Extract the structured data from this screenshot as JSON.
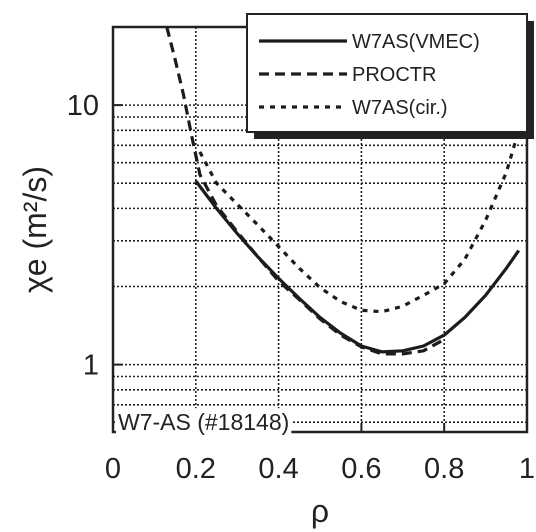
{
  "chart_data": {
    "type": "line",
    "title": "",
    "xlabel": "ρ",
    "ylabel": "χe (m²/s)",
    "xlim": [
      0,
      1
    ],
    "ylim": [
      0.55,
      20
    ],
    "yscale": "log",
    "grid": true,
    "x_ticks": [
      {
        "value": 0,
        "label": "0"
      },
      {
        "value": 0.2,
        "label": "0.2"
      },
      {
        "value": 0.4,
        "label": "0.4"
      },
      {
        "value": 0.6,
        "label": "0.6"
      },
      {
        "value": 0.8,
        "label": "0.8"
      },
      {
        "value": 1,
        "label": "1"
      }
    ],
    "y_ticks": [
      {
        "value": 1,
        "label": "1"
      },
      {
        "value": 10,
        "label": "10"
      }
    ],
    "legend_position": "top-right",
    "annotation": "W7-AS (#18148)",
    "series": [
      {
        "name": "W7AS(VMEC)",
        "style": "solid",
        "x": [
          0.2,
          0.25,
          0.3,
          0.35,
          0.4,
          0.45,
          0.5,
          0.55,
          0.6,
          0.65,
          0.7,
          0.75,
          0.8,
          0.85,
          0.9,
          0.95,
          0.98
        ],
        "y": [
          5.1,
          4.0,
          3.2,
          2.6,
          2.15,
          1.8,
          1.52,
          1.32,
          1.18,
          1.12,
          1.13,
          1.18,
          1.3,
          1.52,
          1.85,
          2.35,
          2.75
        ]
      },
      {
        "name": "PROCTR",
        "style": "dashed",
        "x": [
          0.13,
          0.15,
          0.17,
          0.19,
          0.21,
          0.25,
          0.3,
          0.35,
          0.4,
          0.45,
          0.5,
          0.55,
          0.6,
          0.65,
          0.7,
          0.75,
          0.8
        ],
        "y": [
          20,
          15,
          11,
          7.6,
          5.4,
          4.1,
          3.25,
          2.6,
          2.1,
          1.78,
          1.5,
          1.3,
          1.17,
          1.1,
          1.1,
          1.13,
          1.25
        ]
      },
      {
        "name": "W7AS(cir.)",
        "style": "dotted",
        "x": [
          0.21,
          0.25,
          0.3,
          0.35,
          0.4,
          0.45,
          0.5,
          0.55,
          0.6,
          0.65,
          0.7,
          0.75,
          0.8,
          0.85,
          0.9,
          0.95,
          0.98
        ],
        "y": [
          6.6,
          5.0,
          4.15,
          3.45,
          2.85,
          2.35,
          1.98,
          1.75,
          1.62,
          1.6,
          1.68,
          1.85,
          2.05,
          2.55,
          3.6,
          5.5,
          8.0
        ]
      }
    ]
  }
}
